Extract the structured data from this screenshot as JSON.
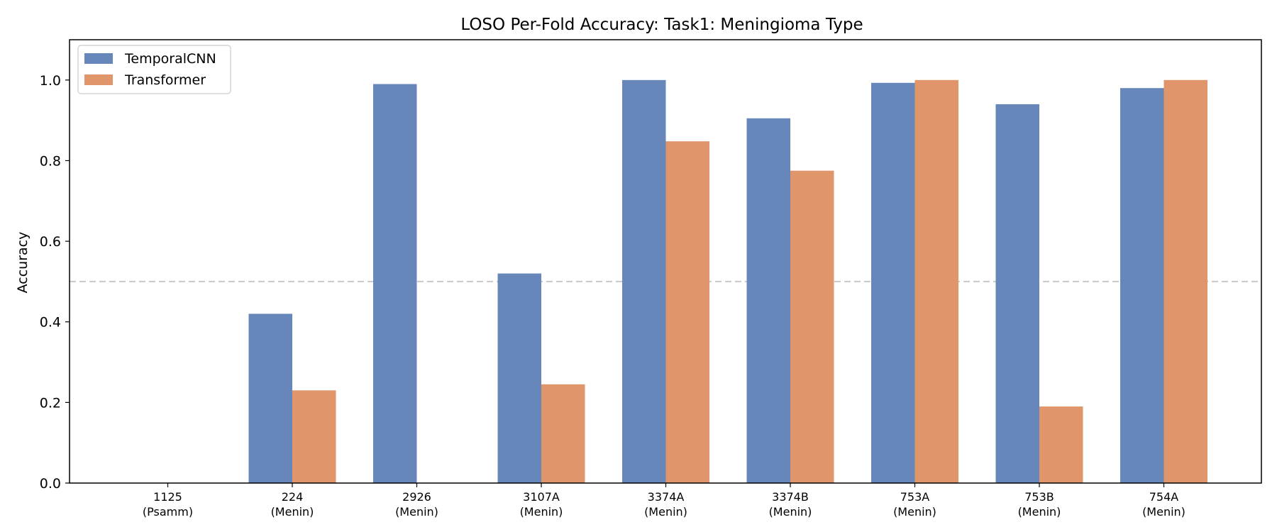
{
  "chart_data": {
    "type": "bar",
    "title": "LOSO Per-Fold Accuracy: Task1: Meningioma Type",
    "xlabel": "",
    "ylabel": "Accuracy",
    "ylim": [
      0,
      1.1
    ],
    "yticks": [
      "0.0",
      "0.2",
      "0.4",
      "0.6",
      "0.8",
      "1.0"
    ],
    "categories": [
      [
        "1125",
        "(Psamm)"
      ],
      [
        "224",
        "(Menin)"
      ],
      [
        "2926",
        "(Menin)"
      ],
      [
        "3107A",
        "(Menin)"
      ],
      [
        "3374A",
        "(Menin)"
      ],
      [
        "3374B",
        "(Menin)"
      ],
      [
        "753A",
        "(Menin)"
      ],
      [
        "753B",
        "(Menin)"
      ],
      [
        "754A",
        "(Menin)"
      ]
    ],
    "series": [
      {
        "name": "TemporalCNN",
        "color": "#6787ba",
        "values": [
          0.0,
          0.42,
          0.99,
          0.52,
          1.0,
          0.905,
          0.993,
          0.94,
          0.98
        ]
      },
      {
        "name": "Transformer",
        "color": "#e1956b",
        "values": [
          0.0,
          0.23,
          0.0,
          0.245,
          0.848,
          0.775,
          1.0,
          0.19,
          1.0
        ]
      }
    ],
    "reference_line": {
      "y": 0.5,
      "style": "dashed",
      "color": "#c8c8c8"
    },
    "legend_position": "top-left",
    "grid": false
  }
}
